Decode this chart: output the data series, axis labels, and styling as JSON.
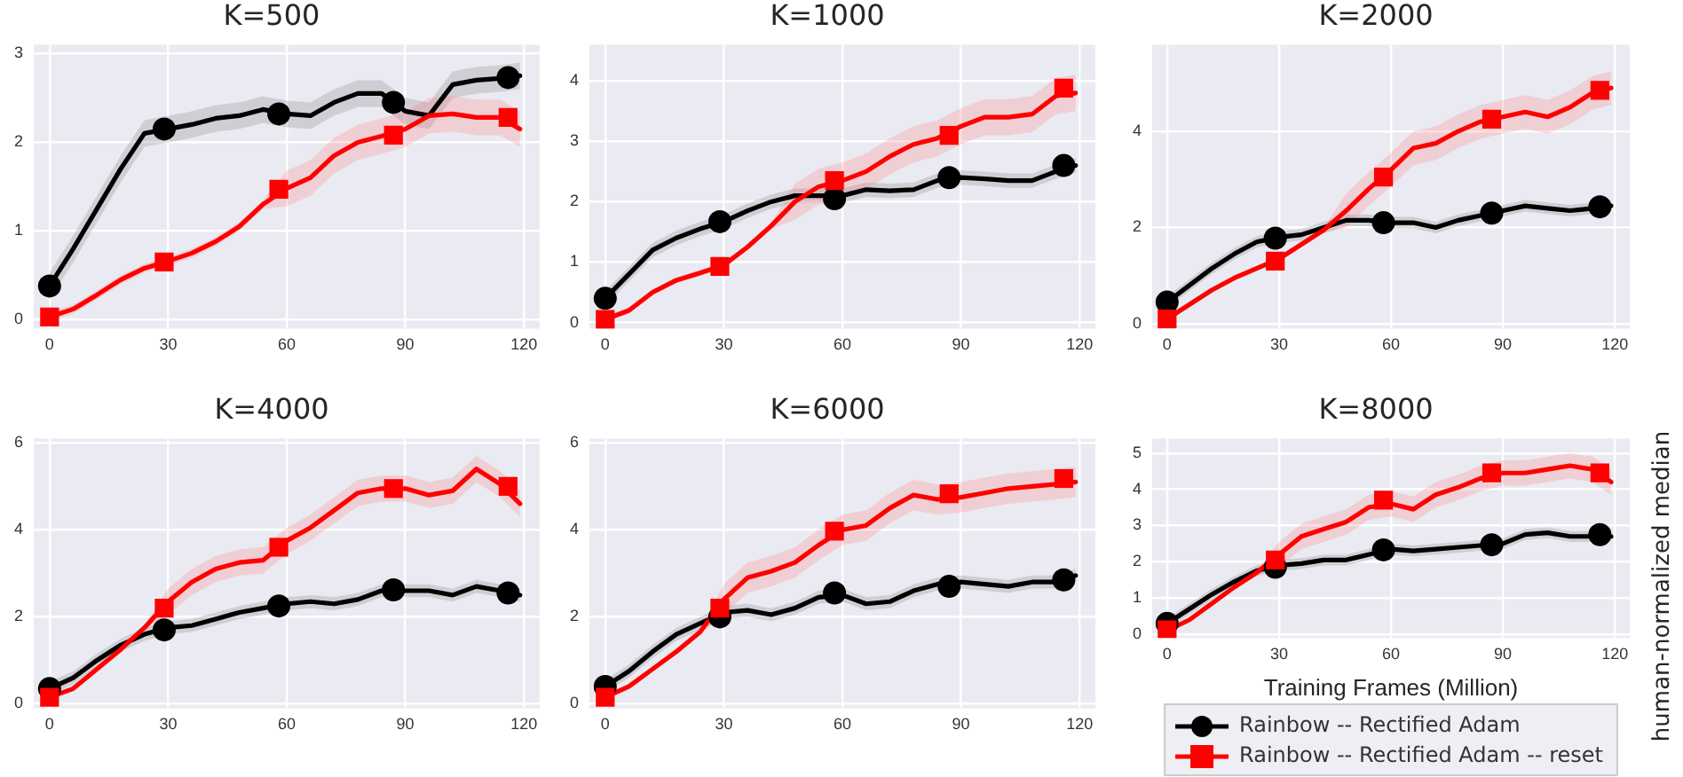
{
  "chart_data": [
    {
      "type": "line",
      "title": "K=500",
      "x": [
        0,
        6,
        12,
        18,
        24,
        30,
        36,
        42,
        48,
        54,
        60,
        66,
        72,
        78,
        84,
        90,
        96,
        102,
        108,
        114,
        119
      ],
      "xlim": [
        -4,
        124
      ],
      "xticks": [
        0,
        30,
        60,
        90,
        120
      ],
      "ylim": [
        -0.1,
        3.1
      ],
      "yticks": [
        0,
        1,
        2,
        3
      ],
      "grid": true,
      "line_style": "solid",
      "series": [
        {
          "type": "line",
          "color": "#000000",
          "values": [
            0.38,
            0.8,
            1.25,
            1.7,
            2.1,
            2.15,
            2.2,
            2.27,
            2.3,
            2.37,
            2.32,
            2.3,
            2.45,
            2.55,
            2.55,
            2.35,
            2.3,
            2.65,
            2.7,
            2.72,
            2.75
          ],
          "lower": [
            0.23,
            0.65,
            1.1,
            1.55,
            1.95,
            2.0,
            2.05,
            2.12,
            2.15,
            2.22,
            2.17,
            2.15,
            2.3,
            2.4,
            2.4,
            2.2,
            2.15,
            2.5,
            2.55,
            2.57,
            2.6
          ],
          "upper": [
            0.53,
            0.95,
            1.4,
            1.85,
            2.25,
            2.3,
            2.35,
            2.42,
            2.45,
            2.52,
            2.47,
            2.45,
            2.6,
            2.7,
            2.7,
            2.5,
            2.45,
            2.8,
            2.85,
            2.87,
            2.9
          ]
        },
        {
          "type": "line",
          "color": "#ff0000",
          "values": [
            0.03,
            0.12,
            0.28,
            0.45,
            0.58,
            0.66,
            0.75,
            0.88,
            1.05,
            1.3,
            1.48,
            1.6,
            1.85,
            2.0,
            2.07,
            2.15,
            2.3,
            2.32,
            2.28,
            2.28,
            2.15
          ],
          "lower": [
            -0.02,
            0.07,
            0.23,
            0.4,
            0.53,
            0.61,
            0.7,
            0.83,
            1.0,
            1.25,
            1.28,
            1.4,
            1.65,
            1.8,
            1.87,
            1.95,
            2.1,
            2.12,
            2.08,
            2.08,
            1.95
          ],
          "upper": [
            0.08,
            0.17,
            0.33,
            0.5,
            0.63,
            0.71,
            0.8,
            0.93,
            1.1,
            1.35,
            1.68,
            1.8,
            2.05,
            2.2,
            2.27,
            2.35,
            2.5,
            2.52,
            2.48,
            2.48,
            2.35
          ]
        },
        {
          "type": "scatter",
          "color": "#000000",
          "marker": "circle",
          "x": [
            0,
            29,
            58,
            87,
            116
          ],
          "values": [
            0.38,
            2.15,
            2.32,
            2.45,
            2.73
          ]
        },
        {
          "type": "scatter",
          "color": "#ff0000",
          "marker": "square",
          "x": [
            0,
            29,
            58,
            87,
            116
          ],
          "values": [
            0.03,
            0.65,
            1.47,
            2.08,
            2.28
          ]
        }
      ]
    },
    {
      "type": "line",
      "title": "K=1000",
      "x": [
        0,
        6,
        12,
        18,
        24,
        30,
        36,
        42,
        48,
        54,
        60,
        66,
        72,
        78,
        84,
        90,
        96,
        102,
        108,
        114,
        119
      ],
      "xlim": [
        -4,
        124
      ],
      "xticks": [
        0,
        30,
        60,
        90,
        120
      ],
      "ylim": [
        -0.1,
        4.6
      ],
      "yticks": [
        0,
        1,
        2,
        3,
        4
      ],
      "grid": true,
      "line_style": "solid",
      "series": [
        {
          "type": "line",
          "color": "#000000",
          "values": [
            0.4,
            0.8,
            1.2,
            1.4,
            1.55,
            1.67,
            1.85,
            2.0,
            2.1,
            2.1,
            2.1,
            2.2,
            2.18,
            2.2,
            2.35,
            2.4,
            2.38,
            2.35,
            2.35,
            2.5,
            2.6
          ],
          "lower": [
            0.28,
            0.68,
            1.08,
            1.28,
            1.43,
            1.55,
            1.73,
            1.88,
            1.98,
            1.98,
            1.98,
            2.08,
            2.06,
            2.08,
            2.23,
            2.28,
            2.26,
            2.23,
            2.23,
            2.38,
            2.48
          ],
          "upper": [
            0.52,
            0.92,
            1.32,
            1.52,
            1.67,
            1.79,
            1.97,
            2.12,
            2.22,
            2.22,
            2.22,
            2.32,
            2.3,
            2.32,
            2.47,
            2.52,
            2.5,
            2.47,
            2.47,
            2.62,
            2.72
          ]
        },
        {
          "type": "line",
          "color": "#ff0000",
          "values": [
            0.05,
            0.2,
            0.5,
            0.7,
            0.82,
            0.95,
            1.25,
            1.6,
            2.0,
            2.25,
            2.35,
            2.5,
            2.75,
            2.95,
            3.05,
            3.25,
            3.4,
            3.4,
            3.45,
            3.75,
            3.8
          ],
          "lower": [
            0.0,
            0.15,
            0.45,
            0.65,
            0.77,
            0.9,
            1.2,
            1.55,
            1.7,
            1.95,
            2.05,
            2.2,
            2.45,
            2.65,
            2.75,
            2.95,
            3.1,
            3.1,
            3.15,
            3.45,
            3.5
          ],
          "upper": [
            0.1,
            0.25,
            0.55,
            0.75,
            0.87,
            1.0,
            1.3,
            1.65,
            2.3,
            2.55,
            2.65,
            2.8,
            3.05,
            3.25,
            3.35,
            3.55,
            3.7,
            3.7,
            3.75,
            4.05,
            4.1
          ]
        },
        {
          "type": "scatter",
          "color": "#000000",
          "marker": "circle",
          "x": [
            0,
            29,
            58,
            87,
            116
          ],
          "values": [
            0.4,
            1.67,
            2.05,
            2.4,
            2.6
          ]
        },
        {
          "type": "scatter",
          "color": "#ff0000",
          "marker": "square",
          "x": [
            0,
            29,
            58,
            87,
            116
          ],
          "values": [
            0.05,
            0.93,
            2.35,
            3.1,
            3.88
          ]
        }
      ]
    },
    {
      "type": "line",
      "title": "K=2000",
      "x": [
        0,
        6,
        12,
        18,
        24,
        30,
        36,
        42,
        48,
        54,
        60,
        66,
        72,
        78,
        84,
        90,
        96,
        102,
        108,
        114,
        119
      ],
      "xlim": [
        -4,
        124
      ],
      "xticks": [
        0,
        30,
        60,
        90,
        120
      ],
      "ylim": [
        -0.1,
        5.8
      ],
      "yticks": [
        0,
        2,
        4
      ],
      "grid": true,
      "line_style": "solid",
      "series": [
        {
          "type": "line",
          "color": "#000000",
          "values": [
            0.45,
            0.8,
            1.15,
            1.45,
            1.7,
            1.8,
            1.85,
            2.0,
            2.15,
            2.15,
            2.1,
            2.1,
            2.0,
            2.15,
            2.25,
            2.35,
            2.45,
            2.4,
            2.35,
            2.4,
            2.45
          ],
          "lower": [
            0.33,
            0.68,
            1.03,
            1.33,
            1.58,
            1.68,
            1.73,
            1.88,
            2.03,
            2.03,
            1.98,
            1.98,
            1.88,
            2.03,
            2.13,
            2.23,
            2.33,
            2.28,
            2.23,
            2.28,
            2.33
          ],
          "upper": [
            0.57,
            0.92,
            1.27,
            1.57,
            1.82,
            1.92,
            1.97,
            2.12,
            2.27,
            2.27,
            2.22,
            2.22,
            2.12,
            2.27,
            2.37,
            2.47,
            2.57,
            2.52,
            2.47,
            2.52,
            2.57
          ]
        },
        {
          "type": "line",
          "color": "#ff0000",
          "values": [
            0.1,
            0.4,
            0.7,
            0.95,
            1.15,
            1.35,
            1.65,
            1.95,
            2.35,
            2.8,
            3.2,
            3.65,
            3.75,
            4.0,
            4.2,
            4.3,
            4.4,
            4.3,
            4.5,
            4.8,
            4.9
          ],
          "lower": [
            0.05,
            0.35,
            0.65,
            0.9,
            1.1,
            1.3,
            1.6,
            1.9,
            2.0,
            2.45,
            2.85,
            3.3,
            3.4,
            3.65,
            3.85,
            3.95,
            4.05,
            3.95,
            4.15,
            4.45,
            4.55
          ],
          "upper": [
            0.15,
            0.45,
            0.75,
            1.0,
            1.2,
            1.4,
            1.7,
            2.0,
            2.7,
            3.15,
            3.55,
            4.0,
            4.1,
            4.35,
            4.55,
            4.65,
            4.75,
            4.65,
            4.85,
            5.15,
            5.25
          ]
        },
        {
          "type": "scatter",
          "color": "#000000",
          "marker": "circle",
          "x": [
            0,
            29,
            58,
            87,
            116
          ],
          "values": [
            0.45,
            1.78,
            2.1,
            2.3,
            2.43
          ]
        },
        {
          "type": "scatter",
          "color": "#ff0000",
          "marker": "square",
          "x": [
            0,
            29,
            58,
            87,
            116
          ],
          "values": [
            0.1,
            1.3,
            3.05,
            4.25,
            4.85
          ]
        }
      ]
    },
    {
      "type": "line",
      "title": "K=4000",
      "x": [
        0,
        6,
        12,
        18,
        24,
        30,
        36,
        42,
        48,
        54,
        60,
        66,
        72,
        78,
        84,
        90,
        96,
        102,
        108,
        114,
        119
      ],
      "xlim": [
        -4,
        124
      ],
      "xticks": [
        0,
        30,
        60,
        90,
        120
      ],
      "ylim": [
        -0.1,
        6.1
      ],
      "yticks": [
        0,
        2,
        4,
        6
      ],
      "grid": true,
      "line_style": "solid",
      "series": [
        {
          "type": "line",
          "color": "#000000",
          "values": [
            0.35,
            0.6,
            1.0,
            1.35,
            1.6,
            1.75,
            1.8,
            1.95,
            2.1,
            2.2,
            2.3,
            2.35,
            2.3,
            2.4,
            2.6,
            2.6,
            2.6,
            2.5,
            2.7,
            2.6,
            2.5
          ],
          "lower": [
            0.2,
            0.45,
            0.85,
            1.2,
            1.45,
            1.6,
            1.65,
            1.8,
            1.95,
            2.05,
            2.15,
            2.2,
            2.15,
            2.25,
            2.45,
            2.45,
            2.45,
            2.35,
            2.55,
            2.45,
            2.35
          ],
          "upper": [
            0.5,
            0.75,
            1.15,
            1.5,
            1.75,
            1.9,
            1.95,
            2.1,
            2.25,
            2.35,
            2.45,
            2.5,
            2.45,
            2.55,
            2.75,
            2.75,
            2.75,
            2.65,
            2.85,
            2.75,
            2.65
          ]
        },
        {
          "type": "line",
          "color": "#ff0000",
          "values": [
            0.15,
            0.35,
            0.8,
            1.25,
            1.75,
            2.35,
            2.8,
            3.1,
            3.25,
            3.3,
            3.75,
            4.05,
            4.45,
            4.85,
            4.95,
            4.95,
            4.8,
            4.9,
            5.4,
            5.05,
            4.6
          ],
          "lower": [
            0.1,
            0.3,
            0.75,
            1.2,
            1.7,
            2.05,
            2.5,
            2.8,
            2.95,
            3.0,
            3.45,
            3.75,
            4.15,
            4.55,
            4.65,
            4.65,
            4.5,
            4.6,
            5.1,
            4.75,
            4.3
          ],
          "upper": [
            0.2,
            0.4,
            0.85,
            1.3,
            1.8,
            2.65,
            3.1,
            3.4,
            3.55,
            3.6,
            4.05,
            4.35,
            4.75,
            5.15,
            5.25,
            5.25,
            5.1,
            5.2,
            5.7,
            5.35,
            4.9
          ]
        },
        {
          "type": "scatter",
          "color": "#000000",
          "marker": "circle",
          "x": [
            0,
            29,
            58,
            87,
            116
          ],
          "values": [
            0.35,
            1.7,
            2.25,
            2.62,
            2.55
          ]
        },
        {
          "type": "scatter",
          "color": "#ff0000",
          "marker": "square",
          "x": [
            0,
            29,
            58,
            87,
            116
          ],
          "values": [
            0.15,
            2.2,
            3.6,
            4.95,
            5.0
          ]
        }
      ]
    },
    {
      "type": "line",
      "title": "K=6000",
      "x": [
        0,
        6,
        12,
        18,
        24,
        30,
        36,
        42,
        48,
        54,
        60,
        66,
        72,
        78,
        84,
        90,
        96,
        102,
        108,
        114,
        119
      ],
      "xlim": [
        -4,
        124
      ],
      "xticks": [
        0,
        30,
        60,
        90,
        120
      ],
      "ylim": [
        -0.1,
        6.1
      ],
      "yticks": [
        0,
        2,
        4,
        6
      ],
      "grid": true,
      "line_style": "solid",
      "series": [
        {
          "type": "line",
          "color": "#000000",
          "values": [
            0.4,
            0.75,
            1.2,
            1.6,
            1.85,
            2.1,
            2.15,
            2.05,
            2.2,
            2.45,
            2.5,
            2.3,
            2.35,
            2.6,
            2.75,
            2.8,
            2.75,
            2.7,
            2.8,
            2.8,
            2.95
          ],
          "lower": [
            0.25,
            0.6,
            1.05,
            1.45,
            1.7,
            1.95,
            2.0,
            1.9,
            2.05,
            2.3,
            2.35,
            2.15,
            2.2,
            2.45,
            2.6,
            2.65,
            2.6,
            2.55,
            2.65,
            2.65,
            2.8
          ],
          "upper": [
            0.55,
            0.9,
            1.35,
            1.75,
            2.0,
            2.25,
            2.3,
            2.2,
            2.35,
            2.6,
            2.65,
            2.45,
            2.5,
            2.75,
            2.9,
            2.95,
            2.9,
            2.85,
            2.95,
            2.95,
            3.1
          ]
        },
        {
          "type": "line",
          "color": "#ff0000",
          "values": [
            0.15,
            0.4,
            0.8,
            1.2,
            1.65,
            2.4,
            2.9,
            3.05,
            3.25,
            3.65,
            4.0,
            4.1,
            4.5,
            4.8,
            4.7,
            4.75,
            4.85,
            4.95,
            5.0,
            5.05,
            5.1
          ],
          "lower": [
            0.1,
            0.35,
            0.75,
            1.15,
            1.6,
            2.05,
            2.55,
            2.7,
            2.9,
            3.3,
            3.65,
            3.75,
            4.15,
            4.45,
            4.35,
            4.4,
            4.5,
            4.6,
            4.65,
            4.7,
            4.75
          ],
          "upper": [
            0.2,
            0.45,
            0.85,
            1.25,
            1.7,
            2.75,
            3.25,
            3.4,
            3.6,
            4.0,
            4.35,
            4.45,
            4.85,
            5.15,
            5.05,
            5.1,
            5.2,
            5.3,
            5.35,
            5.4,
            5.45
          ]
        },
        {
          "type": "scatter",
          "color": "#000000",
          "marker": "circle",
          "x": [
            0,
            29,
            58,
            87,
            116
          ],
          "values": [
            0.4,
            2.0,
            2.55,
            2.7,
            2.85
          ]
        },
        {
          "type": "scatter",
          "color": "#ff0000",
          "marker": "square",
          "x": [
            0,
            29,
            58,
            87,
            116
          ],
          "values": [
            0.15,
            2.2,
            3.97,
            4.83,
            5.18
          ]
        }
      ]
    },
    {
      "type": "line",
      "title": "K=8000",
      "xlabel": "Training Frames (Million)",
      "ylabel": "human-normalized median",
      "legend": "bottom",
      "x": [
        0,
        6,
        12,
        18,
        24,
        30,
        36,
        42,
        48,
        54,
        60,
        66,
        72,
        78,
        84,
        90,
        96,
        102,
        108,
        114,
        119
      ],
      "xlim": [
        -4,
        124
      ],
      "xticks": [
        0,
        30,
        60,
        90,
        120
      ],
      "ylim": [
        -0.1,
        5.4
      ],
      "yticks": [
        0,
        1,
        2,
        3,
        4,
        5
      ],
      "grid": true,
      "line_style": "solid",
      "series": [
        {
          "name": "Rainbow -- Rectified Adam",
          "type": "line",
          "color": "#000000",
          "values": [
            0.3,
            0.7,
            1.1,
            1.45,
            1.75,
            1.9,
            1.95,
            2.05,
            2.05,
            2.2,
            2.35,
            2.3,
            2.35,
            2.4,
            2.45,
            2.5,
            2.75,
            2.8,
            2.7,
            2.7,
            2.7
          ],
          "lower": [
            0.15,
            0.55,
            0.95,
            1.3,
            1.6,
            1.75,
            1.8,
            1.9,
            1.9,
            2.05,
            2.2,
            2.15,
            2.2,
            2.25,
            2.3,
            2.35,
            2.6,
            2.65,
            2.55,
            2.55,
            2.55
          ],
          "upper": [
            0.45,
            0.85,
            1.25,
            1.6,
            1.9,
            2.05,
            2.1,
            2.2,
            2.2,
            2.35,
            2.5,
            2.45,
            2.5,
            2.55,
            2.6,
            2.65,
            2.9,
            2.95,
            2.85,
            2.85,
            2.85
          ]
        },
        {
          "name": "Rainbow -- Rectified Adam -- reset",
          "type": "line",
          "color": "#ff0000",
          "values": [
            0.1,
            0.4,
            0.85,
            1.3,
            1.7,
            2.2,
            2.7,
            2.9,
            3.1,
            3.5,
            3.6,
            3.45,
            3.85,
            4.05,
            4.3,
            4.45,
            4.45,
            4.55,
            4.65,
            4.55,
            4.2
          ],
          "lower": [
            0.05,
            0.35,
            0.8,
            1.25,
            1.65,
            1.85,
            2.35,
            2.55,
            2.75,
            3.15,
            3.25,
            3.1,
            3.5,
            3.7,
            3.95,
            4.1,
            4.1,
            4.2,
            4.3,
            4.2,
            3.85
          ],
          "upper": [
            0.15,
            0.45,
            0.9,
            1.35,
            1.75,
            2.55,
            3.05,
            3.25,
            3.45,
            3.85,
            3.95,
            3.8,
            4.2,
            4.4,
            4.65,
            4.8,
            4.8,
            4.9,
            5.0,
            4.9,
            4.55
          ]
        },
        {
          "type": "scatter",
          "color": "#000000",
          "marker": "circle",
          "x": [
            0,
            29,
            58,
            87,
            116
          ],
          "values": [
            0.3,
            1.85,
            2.33,
            2.47,
            2.75
          ]
        },
        {
          "type": "scatter",
          "color": "#ff0000",
          "marker": "square",
          "x": [
            0,
            29,
            58,
            87,
            116
          ],
          "values": [
            0.12,
            2.05,
            3.7,
            4.45,
            4.45
          ]
        }
      ]
    }
  ]
}
